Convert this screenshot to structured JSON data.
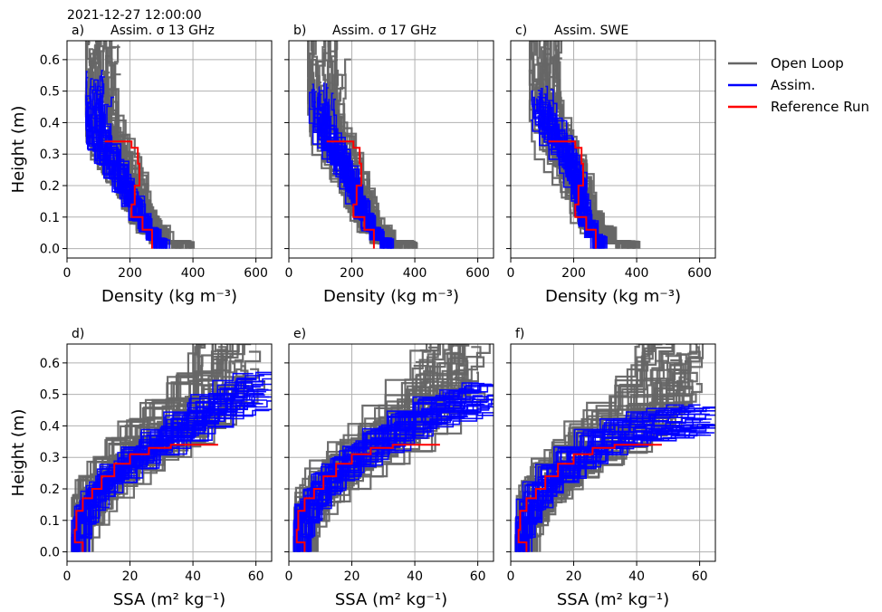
{
  "figure": {
    "suptitle": "2021-12-27 12:00:00",
    "colors": {
      "open_loop": "#666666",
      "assim": "#0000ff",
      "reference": "#ff0000",
      "grid": "#b0b0b0"
    }
  },
  "legend": {
    "placement": "right",
    "entries": [
      "Open Loop",
      "Assim.",
      "Reference Run"
    ]
  },
  "chart_data": [
    {
      "type": "line",
      "panel": "a)",
      "title": "Assim. σ 13 GHz",
      "xlabel": "Density (kg m⁻³)",
      "ylabel": "Height (m)",
      "xlim": [
        0,
        650
      ],
      "ylim": [
        -0.03,
        0.66
      ],
      "xticks": [
        "0",
        "200",
        "400",
        "600"
      ],
      "yticks": [
        "0.0",
        "0.1",
        "0.2",
        "0.3",
        "0.4",
        "0.5",
        "0.6"
      ],
      "grid": true,
      "series": [
        {
          "name": "Open Loop",
          "color": "#666666",
          "x": [
            370,
            300,
            260,
            235,
            220,
            200,
            175,
            150,
            125,
            110,
            105,
            110,
            120
          ],
          "y": [
            0.0,
            0.02,
            0.06,
            0.1,
            0.15,
            0.2,
            0.25,
            0.3,
            0.35,
            0.42,
            0.5,
            0.58,
            0.63
          ]
        },
        {
          "name": "Assim.",
          "color": "#0000ff",
          "x": [
            300,
            275,
            250,
            225,
            200,
            175,
            150,
            120,
            100,
            90,
            95,
            100
          ],
          "y": [
            0.0,
            0.03,
            0.06,
            0.1,
            0.15,
            0.2,
            0.25,
            0.3,
            0.35,
            0.42,
            0.48,
            0.51
          ]
        },
        {
          "name": "Reference Run",
          "color": "#ff0000",
          "x": [
            270,
            240,
            205,
            215,
            230,
            225,
            205,
            185,
            120
          ],
          "y": [
            0.0,
            0.06,
            0.1,
            0.14,
            0.2,
            0.27,
            0.32,
            0.34,
            0.34
          ]
        }
      ]
    },
    {
      "type": "line",
      "panel": "b)",
      "title": "Assim. σ 17 GHz",
      "xlabel": "Density (kg m⁻³)",
      "ylabel": "",
      "xlim": [
        0,
        650
      ],
      "ylim": [
        -0.03,
        0.66
      ],
      "xticks": [
        "0",
        "200",
        "400",
        "600"
      ],
      "yticks": [],
      "grid": true,
      "series": [
        {
          "name": "Open Loop",
          "color": "#666666",
          "x": [
            370,
            300,
            260,
            235,
            220,
            200,
            175,
            150,
            125,
            110,
            105,
            110,
            120
          ],
          "y": [
            0.0,
            0.02,
            0.06,
            0.1,
            0.15,
            0.2,
            0.25,
            0.3,
            0.35,
            0.42,
            0.5,
            0.58,
            0.63
          ]
        },
        {
          "name": "Assim.",
          "color": "#0000ff",
          "x": [
            310,
            280,
            255,
            230,
            210,
            190,
            165,
            135,
            110,
            100,
            105
          ],
          "y": [
            0.0,
            0.03,
            0.06,
            0.1,
            0.15,
            0.2,
            0.25,
            0.3,
            0.35,
            0.42,
            0.47
          ]
        },
        {
          "name": "Reference Run",
          "color": "#ff0000",
          "x": [
            270,
            240,
            205,
            215,
            230,
            225,
            205,
            185,
            120
          ],
          "y": [
            0.0,
            0.06,
            0.1,
            0.14,
            0.2,
            0.27,
            0.32,
            0.34,
            0.34
          ]
        }
      ]
    },
    {
      "type": "line",
      "panel": "c)",
      "title": "Assim. SWE",
      "xlabel": "Density (kg m⁻³)",
      "ylabel": "",
      "xlim": [
        0,
        650
      ],
      "ylim": [
        -0.03,
        0.66
      ],
      "xticks": [
        "0",
        "200",
        "400",
        "600"
      ],
      "yticks": [],
      "grid": true,
      "series": [
        {
          "name": "Open Loop",
          "color": "#666666",
          "x": [
            370,
            300,
            260,
            235,
            220,
            200,
            175,
            150,
            125,
            110,
            105,
            110,
            120
          ],
          "y": [
            0.0,
            0.02,
            0.06,
            0.1,
            0.15,
            0.2,
            0.25,
            0.3,
            0.35,
            0.42,
            0.5,
            0.58,
            0.63
          ]
        },
        {
          "name": "Assim.",
          "color": "#0000ff",
          "x": [
            280,
            260,
            235,
            225,
            215,
            200,
            180,
            150,
            120,
            100,
            95
          ],
          "y": [
            0.0,
            0.04,
            0.08,
            0.12,
            0.17,
            0.22,
            0.27,
            0.32,
            0.37,
            0.42,
            0.46
          ]
        },
        {
          "name": "Reference Run",
          "color": "#ff0000",
          "x": [
            270,
            240,
            205,
            215,
            230,
            225,
            205,
            185,
            120
          ],
          "y": [
            0.0,
            0.06,
            0.1,
            0.14,
            0.2,
            0.27,
            0.32,
            0.34,
            0.34
          ]
        }
      ]
    },
    {
      "type": "line",
      "panel": "d)",
      "title": "",
      "xlabel": "SSA (m² kg⁻¹)",
      "ylabel": "Height (m)",
      "xlim": [
        0,
        65
      ],
      "ylim": [
        -0.03,
        0.66
      ],
      "xticks": [
        "0",
        "20",
        "40",
        "60"
      ],
      "yticks": [
        "0.0",
        "0.1",
        "0.2",
        "0.3",
        "0.4",
        "0.5",
        "0.6"
      ],
      "grid": true,
      "series": [
        {
          "name": "Open Loop",
          "color": "#666666",
          "x": [
            3,
            4,
            6,
            9,
            13,
            18,
            24,
            31,
            39,
            46,
            50,
            53,
            50
          ],
          "y": [
            0.0,
            0.05,
            0.1,
            0.15,
            0.2,
            0.25,
            0.3,
            0.35,
            0.4,
            0.47,
            0.55,
            0.6,
            0.63
          ]
        },
        {
          "name": "Assim.",
          "color": "#0000ff",
          "x": [
            3,
            4,
            6,
            9,
            13,
            19,
            26,
            34,
            42,
            50,
            57,
            62
          ],
          "y": [
            0.0,
            0.05,
            0.1,
            0.15,
            0.2,
            0.25,
            0.3,
            0.35,
            0.4,
            0.45,
            0.49,
            0.51
          ]
        },
        {
          "name": "Reference Run",
          "color": "#ff0000",
          "x": [
            5,
            2.5,
            3,
            5,
            8,
            11,
            15,
            20,
            26,
            33,
            40,
            48
          ],
          "y": [
            0.0,
            0.03,
            0.07,
            0.13,
            0.17,
            0.2,
            0.24,
            0.28,
            0.31,
            0.33,
            0.34,
            0.34
          ]
        }
      ]
    },
    {
      "type": "line",
      "panel": "e)",
      "title": "",
      "xlabel": "SSA (m² kg⁻¹)",
      "ylabel": "",
      "xlim": [
        0,
        65
      ],
      "ylim": [
        -0.03,
        0.66
      ],
      "xticks": [
        "0",
        "20",
        "40",
        "60"
      ],
      "yticks": [],
      "grid": true,
      "series": [
        {
          "name": "Open Loop",
          "color": "#666666",
          "x": [
            3,
            4,
            6,
            9,
            13,
            18,
            24,
            31,
            39,
            46,
            50,
            53,
            50
          ],
          "y": [
            0.0,
            0.05,
            0.1,
            0.15,
            0.2,
            0.25,
            0.3,
            0.35,
            0.4,
            0.47,
            0.55,
            0.6,
            0.63
          ]
        },
        {
          "name": "Assim.",
          "color": "#0000ff",
          "x": [
            3,
            4,
            6,
            9,
            13,
            19,
            26,
            34,
            42,
            50,
            57,
            62
          ],
          "y": [
            0.0,
            0.05,
            0.1,
            0.15,
            0.2,
            0.25,
            0.3,
            0.35,
            0.4,
            0.44,
            0.46,
            0.48
          ]
        },
        {
          "name": "Reference Run",
          "color": "#ff0000",
          "x": [
            5,
            2.5,
            3,
            5,
            8,
            11,
            15,
            20,
            26,
            33,
            40,
            48
          ],
          "y": [
            0.0,
            0.03,
            0.07,
            0.13,
            0.17,
            0.2,
            0.24,
            0.28,
            0.31,
            0.33,
            0.34,
            0.34
          ]
        }
      ]
    },
    {
      "type": "line",
      "panel": "f)",
      "title": "",
      "xlabel": "SSA (m² kg⁻¹)",
      "ylabel": "",
      "xlim": [
        0,
        65
      ],
      "ylim": [
        -0.03,
        0.66
      ],
      "xticks": [
        "0",
        "20",
        "40",
        "60"
      ],
      "yticks": [],
      "grid": true,
      "series": [
        {
          "name": "Open Loop",
          "color": "#666666",
          "x": [
            3,
            4,
            6,
            9,
            13,
            18,
            24,
            31,
            39,
            46,
            50,
            53,
            50
          ],
          "y": [
            0.0,
            0.05,
            0.1,
            0.15,
            0.2,
            0.25,
            0.3,
            0.35,
            0.4,
            0.47,
            0.55,
            0.6,
            0.63
          ]
        },
        {
          "name": "Assim.",
          "color": "#0000ff",
          "x": [
            3,
            4,
            6,
            9,
            13,
            19,
            26,
            34,
            42,
            50,
            57,
            62
          ],
          "y": [
            0.0,
            0.05,
            0.1,
            0.15,
            0.2,
            0.25,
            0.3,
            0.35,
            0.38,
            0.4,
            0.41,
            0.42
          ]
        },
        {
          "name": "Reference Run",
          "color": "#ff0000",
          "x": [
            5,
            2.5,
            3,
            5,
            8,
            11,
            15,
            20,
            26,
            33,
            40,
            48
          ],
          "y": [
            0.0,
            0.03,
            0.07,
            0.13,
            0.17,
            0.2,
            0.24,
            0.28,
            0.31,
            0.33,
            0.34,
            0.34
          ]
        }
      ]
    }
  ]
}
